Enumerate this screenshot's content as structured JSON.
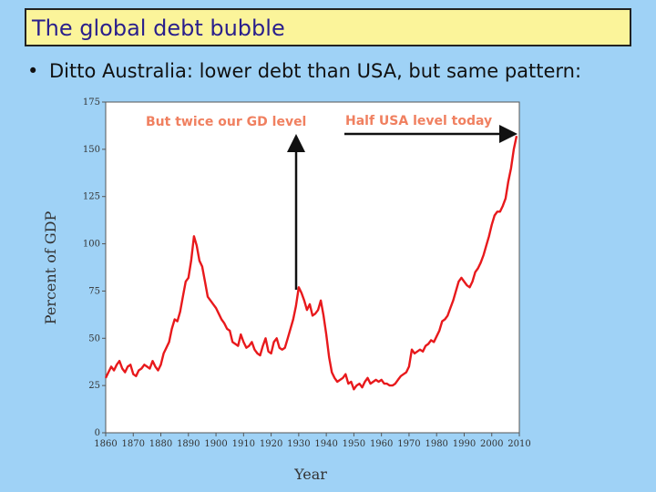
{
  "slide": {
    "title": "The global debt bubble",
    "bullet": "Ditto Australia: lower debt than USA, but same pattern:"
  },
  "chart_data": {
    "type": "line",
    "xlabel": "Year",
    "ylabel": "Percent of GDP",
    "xlim": [
      1860,
      2010
    ],
    "ylim": [
      0,
      175
    ],
    "x_ticks": [
      1860,
      1870,
      1880,
      1890,
      1900,
      1910,
      1920,
      1930,
      1940,
      1950,
      1960,
      1970,
      1980,
      1990,
      2000,
      2010
    ],
    "y_ticks": [
      0,
      25,
      50,
      75,
      100,
      125,
      150,
      175
    ],
    "grid": false,
    "line_color": "#e8191c",
    "series": [
      {
        "x": [
          1860,
          1861,
          1862,
          1863,
          1864,
          1865,
          1866,
          1867,
          1868,
          1869,
          1870,
          1871,
          1872,
          1873,
          1874,
          1875,
          1876,
          1877,
          1878,
          1879,
          1880,
          1881,
          1882,
          1883,
          1884,
          1885,
          1886,
          1887,
          1888,
          1889,
          1890,
          1891,
          1892,
          1893,
          1894,
          1895,
          1896,
          1897,
          1898,
          1899,
          1900,
          1901,
          1902,
          1903,
          1904,
          1905,
          1906,
          1907,
          1908,
          1909,
          1910,
          1911,
          1912,
          1913,
          1914,
          1915,
          1916,
          1917,
          1918,
          1919,
          1920,
          1921,
          1922,
          1923,
          1924,
          1925,
          1926,
          1927,
          1928,
          1929,
          1930,
          1931,
          1932,
          1933,
          1934,
          1935,
          1936,
          1937,
          1938,
          1939,
          1940,
          1941,
          1942,
          1943,
          1944,
          1945,
          1946,
          1947,
          1948,
          1949,
          1950,
          1951,
          1952,
          1953,
          1954,
          1955,
          1956,
          1957,
          1958,
          1959,
          1960,
          1961,
          1962,
          1963,
          1964,
          1965,
          1966,
          1967,
          1968,
          1969,
          1970,
          1971,
          1972,
          1973,
          1974,
          1975,
          1976,
          1977,
          1978,
          1979,
          1980,
          1981,
          1982,
          1983,
          1984,
          1985,
          1986,
          1987,
          1988,
          1989,
          1990,
          1991,
          1992,
          1993,
          1994,
          1995,
          1996,
          1997,
          1998,
          1999,
          2000,
          2001,
          2002,
          2003,
          2004,
          2005,
          2006,
          2007,
          2008,
          2009
        ],
        "values": [
          29,
          32,
          35,
          33,
          36,
          38,
          34,
          32,
          35,
          36,
          31,
          30,
          33,
          34,
          36,
          35,
          34,
          38,
          35,
          33,
          36,
          42,
          45,
          48,
          55,
          60,
          59,
          64,
          72,
          80,
          82,
          91,
          104,
          99,
          91,
          88,
          80,
          72,
          70,
          68,
          66,
          63,
          60,
          58,
          55,
          54,
          48,
          47,
          46,
          52,
          48,
          45,
          46,
          48,
          44,
          42,
          41,
          46,
          50,
          43,
          42,
          48,
          50,
          45,
          44,
          45,
          50,
          55,
          60,
          67,
          77,
          74,
          70,
          65,
          68,
          62,
          63,
          65,
          70,
          62,
          52,
          40,
          32,
          29,
          27,
          28,
          29,
          31,
          26,
          27,
          23,
          25,
          26,
          24,
          27,
          29,
          26,
          27,
          28,
          27,
          28,
          26,
          26,
          25,
          25,
          26,
          28,
          30,
          31,
          32,
          35,
          44,
          42,
          43,
          44,
          43,
          46,
          47,
          49,
          48,
          51,
          54,
          59,
          60,
          62,
          66,
          70,
          75,
          80,
          82,
          80,
          78,
          77,
          80,
          85,
          87,
          90,
          94,
          99,
          104,
          110,
          115,
          117,
          117,
          120,
          124,
          133,
          140,
          150,
          157
        ]
      }
    ],
    "annotations": [
      {
        "text": "But twice our GD level",
        "color": "#f08060"
      },
      {
        "text": "Half USA level today",
        "color": "#f08060"
      }
    ]
  }
}
